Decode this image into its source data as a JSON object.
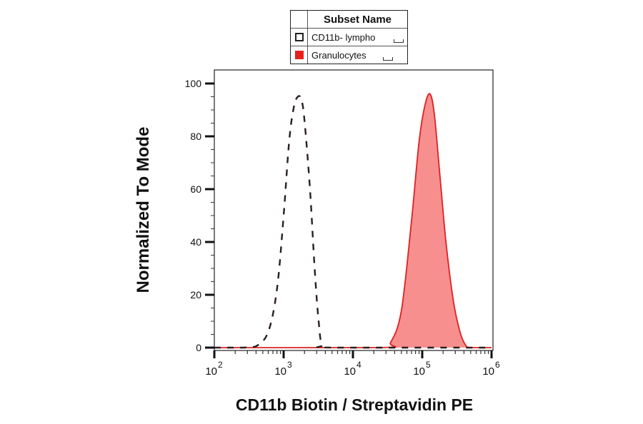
{
  "chart_data": {
    "type": "area",
    "title": "",
    "xlabel": "CD11b Biotin / Streptavidin PE",
    "ylabel": "Normalized To Mode",
    "xscale": "log",
    "xlim": [
      80,
      1000000
    ],
    "ylim": [
      0,
      100
    ],
    "x_ticks": [
      100,
      1000,
      10000,
      100000,
      1000000
    ],
    "x_tick_labels": [
      {
        "base": "10",
        "exp": "2"
      },
      {
        "base": "10",
        "exp": "3"
      },
      {
        "base": "10",
        "exp": "4"
      },
      {
        "base": "10",
        "exp": "5"
      },
      {
        "base": "10",
        "exp": "6"
      }
    ],
    "y_ticks": [
      0,
      20,
      40,
      60,
      80,
      100
    ],
    "y_tick_labels": [
      "0",
      "20",
      "40",
      "60",
      "80",
      "100"
    ],
    "legend": {
      "header": "Subset Name",
      "placement": "top-center-outside"
    },
    "series": [
      {
        "name": "CD11b- lympho",
        "style": "dashed",
        "color": "#2a1f1f",
        "fill": "none",
        "x": [
          80,
          250,
          400,
          600,
          800,
          1000,
          1200,
          1400,
          1600,
          1800,
          2000,
          2400,
          2800,
          3200,
          3600,
          5000,
          1000000
        ],
        "y": [
          0,
          0,
          0.5,
          6,
          22,
          50,
          78,
          91,
          95,
          94,
          86,
          60,
          30,
          10,
          1,
          0,
          0
        ]
      },
      {
        "name": "Granulocytes",
        "style": "solid",
        "color": "#e02020",
        "fill": "#f78f8f",
        "x": [
          80,
          25000,
          35000,
          50000,
          70000,
          90000,
          110000,
          130000,
          150000,
          180000,
          220000,
          280000,
          350000,
          420000,
          500000,
          1000000
        ],
        "y": [
          0,
          0,
          2,
          14,
          48,
          78,
          92,
          96,
          88,
          65,
          40,
          18,
          6,
          1,
          0,
          0
        ]
      }
    ]
  }
}
